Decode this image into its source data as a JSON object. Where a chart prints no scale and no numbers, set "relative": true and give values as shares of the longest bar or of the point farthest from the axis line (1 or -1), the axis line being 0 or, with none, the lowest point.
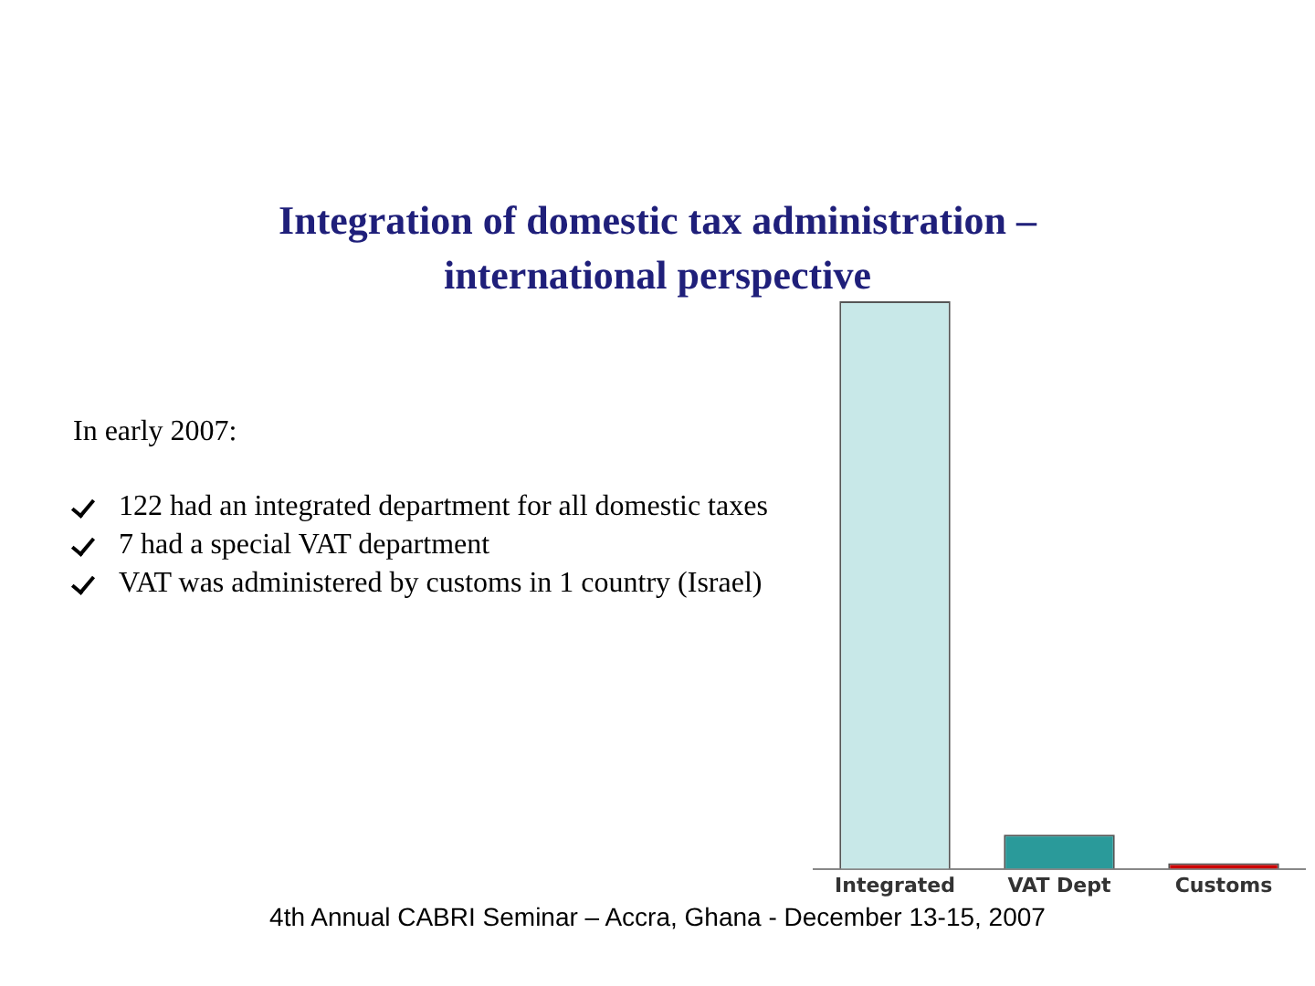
{
  "chart_data": {
    "type": "bar",
    "title": "Integration of domestic tax administration – international perspective",
    "categories": [
      "Integrated",
      "VAT Dept",
      "Customs"
    ],
    "values": [
      1,
      0.06,
      0.01
    ],
    "colors": [
      "#c8e8e8",
      "#2a9a9a",
      "#cc0000"
    ],
    "relative": true,
    "grid": false,
    "legend": false,
    "annotations": [
      "In early 2007:",
      "122 had an integrated department for all domestic taxes",
      "7 had a special VAT department",
      "VAT was administered by customs in 1 country (Israel)",
      "4th Annual CABRI Seminar – Accra, Ghana - December 13-15, 2007"
    ]
  }
}
